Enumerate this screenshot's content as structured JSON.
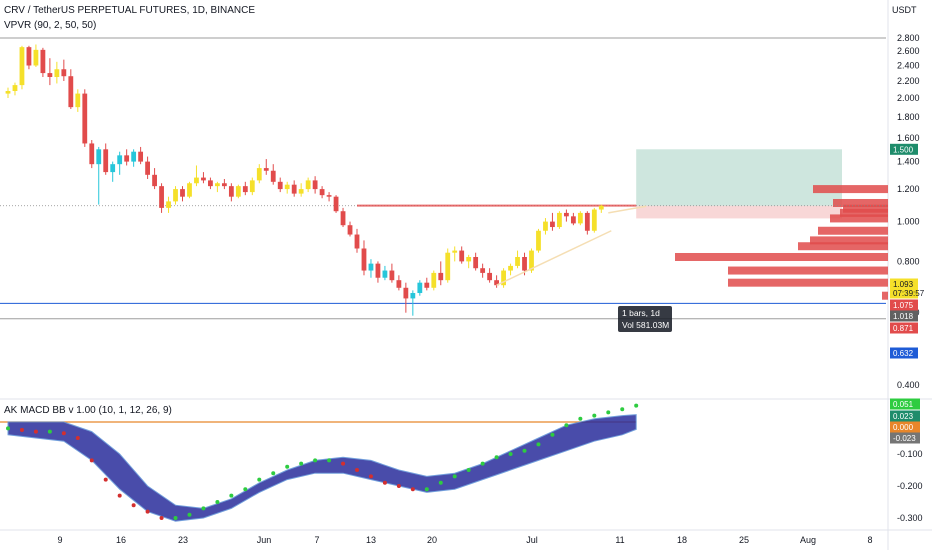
{
  "header": {
    "symbol_line": "CRV / TetherUS PERPETUAL FUTURES, 1D, BINANCE",
    "indicator_line": "VPVR (90, 2, 50, 50)",
    "currency": "USDT"
  },
  "macd_pane": {
    "title": "AK MACD BB v 1.00 (10, 1, 12, 26, 9)"
  },
  "chart_data": [
    {
      "type": "candlestick",
      "title": "CRV / TetherUS PERPETUAL FUTURES, 1D, BINANCE",
      "y_ticks": [
        "0.400",
        "0.600",
        "0.800",
        "1.000",
        "1.200",
        "1.400",
        "1.600",
        "1.800",
        "2.000",
        "2.200",
        "2.400",
        "2.600",
        "2.800"
      ],
      "y_scale": "log",
      "x_tick_labels": [
        "9",
        "16",
        "23",
        "Jun",
        "7",
        "13",
        "20",
        "Jul",
        "11",
        "18",
        "25",
        "Aug",
        "8"
      ],
      "price_labels": [
        {
          "label": "1.500",
          "value": 1.5,
          "color": "#1e8c6b"
        },
        {
          "label": "1.093",
          "value": 1.093,
          "color": "#f5e02a"
        },
        {
          "label": "07:39:57",
          "value": 1.075,
          "color": "#f5e02a"
        },
        {
          "label": "1.075",
          "value": 1.075,
          "color": "#e14b4b"
        },
        {
          "label": "1.018",
          "value": 1.018,
          "color": "#616161"
        },
        {
          "label": "0.871",
          "value": 0.871,
          "color": "#e14b4b"
        },
        {
          "label": "0.632",
          "value": 0.632,
          "color": "#1e5bd6"
        }
      ],
      "horizontal_levels": [
        {
          "value": 2.8,
          "color": "#9e9e9e"
        },
        {
          "value": 0.632,
          "color": "#1e5bd6"
        },
        {
          "value": 0.58,
          "color": "#9e9e9e"
        }
      ],
      "annotations": [
        "1 bars, 1d",
        "Vol 581.03M"
      ],
      "candles": [
        {
          "o": 2.05,
          "h": 2.12,
          "l": 2.0,
          "c": 2.08
        },
        {
          "o": 2.08,
          "h": 2.18,
          "l": 2.03,
          "c": 2.15
        },
        {
          "o": 2.15,
          "h": 2.68,
          "l": 2.1,
          "c": 2.66
        },
        {
          "o": 2.66,
          "h": 2.68,
          "l": 2.35,
          "c": 2.4
        },
        {
          "o": 2.4,
          "h": 2.7,
          "l": 2.38,
          "c": 2.62
        },
        {
          "o": 2.62,
          "h": 2.65,
          "l": 2.25,
          "c": 2.3
        },
        {
          "o": 2.3,
          "h": 2.5,
          "l": 2.15,
          "c": 2.25
        },
        {
          "o": 2.25,
          "h": 2.45,
          "l": 2.17,
          "c": 2.35
        },
        {
          "o": 2.35,
          "h": 2.48,
          "l": 2.2,
          "c": 2.26
        },
        {
          "o": 2.26,
          "h": 2.35,
          "l": 1.88,
          "c": 1.9
        },
        {
          "o": 1.9,
          "h": 2.1,
          "l": 1.85,
          "c": 2.05
        },
        {
          "o": 2.05,
          "h": 2.1,
          "l": 1.52,
          "c": 1.55
        },
        {
          "o": 1.55,
          "h": 1.58,
          "l": 1.35,
          "c": 1.38
        },
        {
          "o": 1.38,
          "h": 1.52,
          "l": 1.1,
          "c": 1.5
        },
        {
          "o": 1.5,
          "h": 1.55,
          "l": 1.3,
          "c": 1.32
        },
        {
          "o": 1.32,
          "h": 1.4,
          "l": 1.25,
          "c": 1.38
        },
        {
          "o": 1.38,
          "h": 1.48,
          "l": 1.3,
          "c": 1.45
        },
        {
          "o": 1.45,
          "h": 1.5,
          "l": 1.37,
          "c": 1.4
        },
        {
          "o": 1.4,
          "h": 1.5,
          "l": 1.36,
          "c": 1.48
        },
        {
          "o": 1.48,
          "h": 1.52,
          "l": 1.38,
          "c": 1.4
        },
        {
          "o": 1.4,
          "h": 1.44,
          "l": 1.27,
          "c": 1.3
        },
        {
          "o": 1.3,
          "h": 1.35,
          "l": 1.2,
          "c": 1.22
        },
        {
          "o": 1.22,
          "h": 1.24,
          "l": 1.05,
          "c": 1.08
        },
        {
          "o": 1.08,
          "h": 1.15,
          "l": 1.05,
          "c": 1.12
        },
        {
          "o": 1.12,
          "h": 1.22,
          "l": 1.1,
          "c": 1.2
        },
        {
          "o": 1.2,
          "h": 1.22,
          "l": 1.12,
          "c": 1.15
        },
        {
          "o": 1.15,
          "h": 1.25,
          "l": 1.14,
          "c": 1.24
        },
        {
          "o": 1.24,
          "h": 1.37,
          "l": 1.22,
          "c": 1.28
        },
        {
          "o": 1.28,
          "h": 1.32,
          "l": 1.24,
          "c": 1.26
        },
        {
          "o": 1.26,
          "h": 1.28,
          "l": 1.2,
          "c": 1.22
        },
        {
          "o": 1.22,
          "h": 1.25,
          "l": 1.18,
          "c": 1.24
        },
        {
          "o": 1.24,
          "h": 1.27,
          "l": 1.2,
          "c": 1.22
        },
        {
          "o": 1.22,
          "h": 1.24,
          "l": 1.12,
          "c": 1.15
        },
        {
          "o": 1.15,
          "h": 1.23,
          "l": 1.14,
          "c": 1.22
        },
        {
          "o": 1.22,
          "h": 1.25,
          "l": 1.16,
          "c": 1.18
        },
        {
          "o": 1.18,
          "h": 1.28,
          "l": 1.16,
          "c": 1.26
        },
        {
          "o": 1.26,
          "h": 1.38,
          "l": 1.24,
          "c": 1.35
        },
        {
          "o": 1.35,
          "h": 1.42,
          "l": 1.3,
          "c": 1.33
        },
        {
          "o": 1.33,
          "h": 1.38,
          "l": 1.23,
          "c": 1.25
        },
        {
          "o": 1.25,
          "h": 1.28,
          "l": 1.18,
          "c": 1.2
        },
        {
          "o": 1.2,
          "h": 1.25,
          "l": 1.17,
          "c": 1.23
        },
        {
          "o": 1.23,
          "h": 1.26,
          "l": 1.15,
          "c": 1.17
        },
        {
          "o": 1.17,
          "h": 1.24,
          "l": 1.15,
          "c": 1.2
        },
        {
          "o": 1.2,
          "h": 1.28,
          "l": 1.18,
          "c": 1.26
        },
        {
          "o": 1.26,
          "h": 1.29,
          "l": 1.17,
          "c": 1.2
        },
        {
          "o": 1.2,
          "h": 1.22,
          "l": 1.14,
          "c": 1.16
        },
        {
          "o": 1.16,
          "h": 1.18,
          "l": 1.12,
          "c": 1.15
        },
        {
          "o": 1.15,
          "h": 1.16,
          "l": 1.05,
          "c": 1.06
        },
        {
          "o": 1.06,
          "h": 1.08,
          "l": 0.97,
          "c": 0.98
        },
        {
          "o": 0.98,
          "h": 1.0,
          "l": 0.92,
          "c": 0.93
        },
        {
          "o": 0.93,
          "h": 0.96,
          "l": 0.84,
          "c": 0.86
        },
        {
          "o": 0.86,
          "h": 0.9,
          "l": 0.74,
          "c": 0.76
        },
        {
          "o": 0.76,
          "h": 0.81,
          "l": 0.73,
          "c": 0.79
        },
        {
          "o": 0.79,
          "h": 0.8,
          "l": 0.71,
          "c": 0.73
        },
        {
          "o": 0.73,
          "h": 0.78,
          "l": 0.72,
          "c": 0.76
        },
        {
          "o": 0.76,
          "h": 0.79,
          "l": 0.71,
          "c": 0.72
        },
        {
          "o": 0.72,
          "h": 0.74,
          "l": 0.68,
          "c": 0.69
        },
        {
          "o": 0.69,
          "h": 0.71,
          "l": 0.6,
          "c": 0.65
        },
        {
          "o": 0.65,
          "h": 0.68,
          "l": 0.59,
          "c": 0.67
        },
        {
          "o": 0.67,
          "h": 0.72,
          "l": 0.66,
          "c": 0.71
        },
        {
          "o": 0.71,
          "h": 0.73,
          "l": 0.68,
          "c": 0.69
        },
        {
          "o": 0.69,
          "h": 0.76,
          "l": 0.68,
          "c": 0.75
        },
        {
          "o": 0.75,
          "h": 0.8,
          "l": 0.7,
          "c": 0.72
        },
        {
          "o": 0.72,
          "h": 0.86,
          "l": 0.71,
          "c": 0.84
        },
        {
          "o": 0.84,
          "h": 0.87,
          "l": 0.8,
          "c": 0.85
        },
        {
          "o": 0.85,
          "h": 0.87,
          "l": 0.79,
          "c": 0.8
        },
        {
          "o": 0.8,
          "h": 0.83,
          "l": 0.77,
          "c": 0.82
        },
        {
          "o": 0.82,
          "h": 0.84,
          "l": 0.76,
          "c": 0.77
        },
        {
          "o": 0.77,
          "h": 0.79,
          "l": 0.73,
          "c": 0.75
        },
        {
          "o": 0.75,
          "h": 0.77,
          "l": 0.71,
          "c": 0.72
        },
        {
          "o": 0.72,
          "h": 0.74,
          "l": 0.69,
          "c": 0.7
        },
        {
          "o": 0.7,
          "h": 0.77,
          "l": 0.69,
          "c": 0.76
        },
        {
          "o": 0.76,
          "h": 0.79,
          "l": 0.74,
          "c": 0.78
        },
        {
          "o": 0.78,
          "h": 0.85,
          "l": 0.77,
          "c": 0.82
        },
        {
          "o": 0.82,
          "h": 0.84,
          "l": 0.74,
          "c": 0.76
        },
        {
          "o": 0.76,
          "h": 0.86,
          "l": 0.75,
          "c": 0.85
        },
        {
          "o": 0.85,
          "h": 0.96,
          "l": 0.84,
          "c": 0.95
        },
        {
          "o": 0.95,
          "h": 1.02,
          "l": 0.93,
          "c": 1.0
        },
        {
          "o": 1.0,
          "h": 1.05,
          "l": 0.95,
          "c": 0.97
        },
        {
          "o": 0.97,
          "h": 1.06,
          "l": 0.96,
          "c": 1.05
        },
        {
          "o": 1.05,
          "h": 1.07,
          "l": 1.0,
          "c": 1.03
        },
        {
          "o": 1.03,
          "h": 1.05,
          "l": 0.98,
          "c": 0.99
        },
        {
          "o": 0.99,
          "h": 1.06,
          "l": 0.98,
          "c": 1.05
        },
        {
          "o": 1.05,
          "h": 1.06,
          "l": 0.93,
          "c": 0.95
        },
        {
          "o": 0.95,
          "h": 1.08,
          "l": 0.94,
          "c": 1.07
        },
        {
          "o": 1.07,
          "h": 1.1,
          "l": 1.05,
          "c": 1.093
        }
      ],
      "long_position_box": {
        "entry": 1.093,
        "target": 1.5,
        "stop": 1.018
      },
      "trend_lines": [
        {
          "from": {
            "bar": 70,
            "value": 0.7
          },
          "to": {
            "bar": 85,
            "value": 0.95
          }
        },
        {
          "from": {
            "bar": 86,
            "value": 1.05
          },
          "to": {
            "bar": 90,
            "value": 1.09
          }
        }
      ],
      "volume_profile": [
        {
          "value": 1.2,
          "length": 75
        },
        {
          "value": 1.11,
          "length": 55
        },
        {
          "value": 1.075,
          "length": 45
        },
        {
          "value": 1.05,
          "length": 48
        },
        {
          "value": 1.018,
          "length": 58
        },
        {
          "value": 0.95,
          "length": 70
        },
        {
          "value": 0.9,
          "length": 78
        },
        {
          "value": 0.871,
          "length": 90
        },
        {
          "value": 0.82,
          "length": 213
        },
        {
          "value": 0.76,
          "length": 160
        },
        {
          "value": 0.71,
          "length": 160
        },
        {
          "value": 0.66,
          "length": 6
        }
      ]
    },
    {
      "type": "macd_band",
      "title": "AK MACD BB v 1.00 (10, 1, 12, 26, 9)",
      "y_ticks": [
        "-0.300",
        "-0.200",
        "-0.100"
      ],
      "ylim": [
        -0.32,
        0.06
      ],
      "zero_line": 0.0,
      "value_labels": [
        {
          "label": "0.051",
          "value": 0.051,
          "color": "#2ecc40"
        },
        {
          "label": "0.023",
          "value": 0.023,
          "color": "#1e8c6b"
        },
        {
          "label": "0.000",
          "value": 0.0,
          "color": "#e8862a"
        },
        {
          "label": "-0.023",
          "value": -0.023,
          "color": "#757575"
        }
      ],
      "macd_points": [
        {
          "bar": 0,
          "v": -0.02
        },
        {
          "bar": 2,
          "v": -0.025
        },
        {
          "bar": 4,
          "v": -0.03
        },
        {
          "bar": 6,
          "v": -0.03
        },
        {
          "bar": 8,
          "v": -0.035
        },
        {
          "bar": 10,
          "v": -0.05
        },
        {
          "bar": 12,
          "v": -0.12
        },
        {
          "bar": 14,
          "v": -0.18
        },
        {
          "bar": 16,
          "v": -0.23
        },
        {
          "bar": 18,
          "v": -0.26
        },
        {
          "bar": 20,
          "v": -0.28
        },
        {
          "bar": 22,
          "v": -0.3
        },
        {
          "bar": 24,
          "v": -0.3
        },
        {
          "bar": 26,
          "v": -0.29
        },
        {
          "bar": 28,
          "v": -0.27
        },
        {
          "bar": 30,
          "v": -0.25
        },
        {
          "bar": 32,
          "v": -0.23
        },
        {
          "bar": 34,
          "v": -0.21
        },
        {
          "bar": 36,
          "v": -0.18
        },
        {
          "bar": 38,
          "v": -0.16
        },
        {
          "bar": 40,
          "v": -0.14
        },
        {
          "bar": 42,
          "v": -0.13
        },
        {
          "bar": 44,
          "v": -0.12
        },
        {
          "bar": 46,
          "v": -0.12
        },
        {
          "bar": 48,
          "v": -0.13
        },
        {
          "bar": 50,
          "v": -0.15
        },
        {
          "bar": 52,
          "v": -0.17
        },
        {
          "bar": 54,
          "v": -0.19
        },
        {
          "bar": 56,
          "v": -0.2
        },
        {
          "bar": 58,
          "v": -0.21
        },
        {
          "bar": 60,
          "v": -0.21
        },
        {
          "bar": 62,
          "v": -0.19
        },
        {
          "bar": 64,
          "v": -0.17
        },
        {
          "bar": 66,
          "v": -0.15
        },
        {
          "bar": 68,
          "v": -0.13
        },
        {
          "bar": 70,
          "v": -0.11
        },
        {
          "bar": 72,
          "v": -0.1
        },
        {
          "bar": 74,
          "v": -0.09
        },
        {
          "bar": 76,
          "v": -0.07
        },
        {
          "bar": 78,
          "v": -0.04
        },
        {
          "bar": 80,
          "v": -0.01
        },
        {
          "bar": 82,
          "v": 0.01
        },
        {
          "bar": 84,
          "v": 0.02
        },
        {
          "bar": 86,
          "v": 0.03
        },
        {
          "bar": 88,
          "v": 0.04
        },
        {
          "bar": 90,
          "v": 0.051
        }
      ],
      "band_upper": [
        {
          "bar": 0,
          "v": 0.0
        },
        {
          "bar": 8,
          "v": 0.0
        },
        {
          "bar": 12,
          "v": -0.03
        },
        {
          "bar": 16,
          "v": -0.1
        },
        {
          "bar": 20,
          "v": -0.2
        },
        {
          "bar": 24,
          "v": -0.26
        },
        {
          "bar": 28,
          "v": -0.27
        },
        {
          "bar": 32,
          "v": -0.24
        },
        {
          "bar": 36,
          "v": -0.19
        },
        {
          "bar": 40,
          "v": -0.15
        },
        {
          "bar": 44,
          "v": -0.12
        },
        {
          "bar": 48,
          "v": -0.11
        },
        {
          "bar": 52,
          "v": -0.12
        },
        {
          "bar": 56,
          "v": -0.15
        },
        {
          "bar": 60,
          "v": -0.17
        },
        {
          "bar": 64,
          "v": -0.16
        },
        {
          "bar": 68,
          "v": -0.13
        },
        {
          "bar": 72,
          "v": -0.09
        },
        {
          "bar": 76,
          "v": -0.05
        },
        {
          "bar": 80,
          "v": -0.01
        },
        {
          "bar": 84,
          "v": 0.01
        },
        {
          "bar": 88,
          "v": 0.02
        },
        {
          "bar": 90,
          "v": 0.023
        }
      ],
      "band_lower": [
        {
          "bar": 0,
          "v": -0.04
        },
        {
          "bar": 8,
          "v": -0.06
        },
        {
          "bar": 12,
          "v": -0.12
        },
        {
          "bar": 16,
          "v": -0.21
        },
        {
          "bar": 20,
          "v": -0.28
        },
        {
          "bar": 24,
          "v": -0.31
        },
        {
          "bar": 28,
          "v": -0.3
        },
        {
          "bar": 32,
          "v": -0.27
        },
        {
          "bar": 36,
          "v": -0.22
        },
        {
          "bar": 40,
          "v": -0.18
        },
        {
          "bar": 44,
          "v": -0.16
        },
        {
          "bar": 48,
          "v": -0.16
        },
        {
          "bar": 52,
          "v": -0.18
        },
        {
          "bar": 56,
          "v": -0.2
        },
        {
          "bar": 60,
          "v": -0.22
        },
        {
          "bar": 64,
          "v": -0.21
        },
        {
          "bar": 68,
          "v": -0.18
        },
        {
          "bar": 72,
          "v": -0.15
        },
        {
          "bar": 76,
          "v": -0.12
        },
        {
          "bar": 80,
          "v": -0.09
        },
        {
          "bar": 84,
          "v": -0.06
        },
        {
          "bar": 88,
          "v": -0.04
        },
        {
          "bar": 90,
          "v": -0.023
        }
      ]
    }
  ],
  "colors": {
    "up": "#f5e02a",
    "down": "#e14b4b",
    "teal_up": "#26c6da",
    "macd_up_dot": "#2ecc40",
    "macd_down_dot": "#d32f2f",
    "band_fill": "#2a2d9c",
    "profile": "#e14b4b",
    "target_zone": "#1e8c6b",
    "stop_zone": "#e14b4b"
  }
}
